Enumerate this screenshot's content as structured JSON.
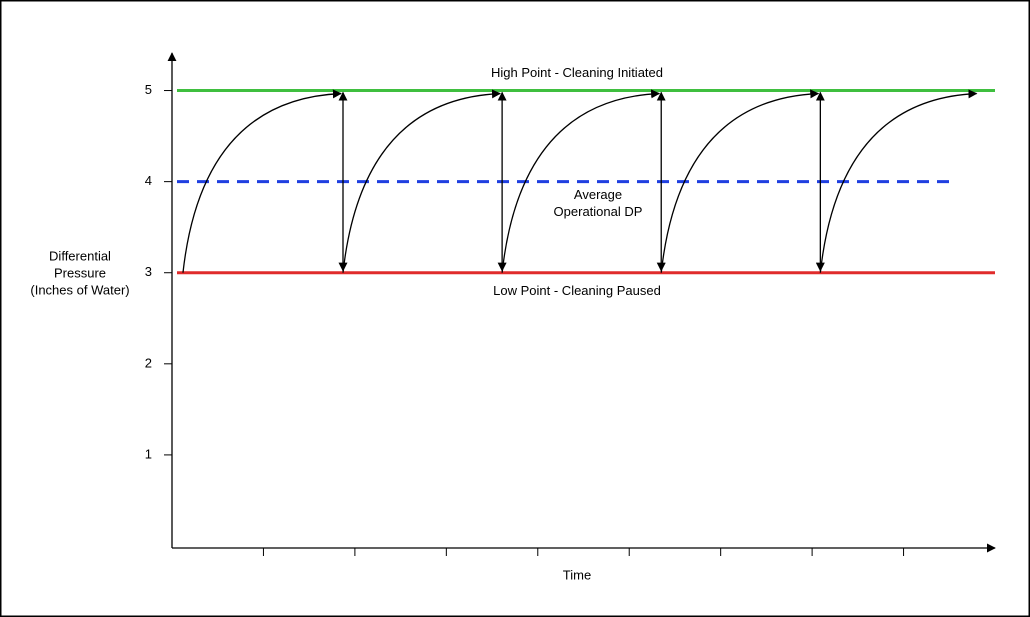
{
  "chart_data": {
    "type": "line",
    "x_label": "Time",
    "y_label_lines": [
      "Differential",
      "Pressure",
      "(Inches of Water)"
    ],
    "xlim": [
      0,
      9
    ],
    "xticks": [
      1,
      2,
      3,
      4,
      5,
      6,
      7,
      8
    ],
    "ylim": [
      0,
      5.5
    ],
    "yticks": [
      1,
      2,
      3,
      4,
      5
    ],
    "x": [
      0.12,
      1.87,
      1.87,
      3.61,
      3.61,
      5.35,
      5.35,
      7.09,
      7.09,
      8.82
    ],
    "values": [
      3,
      5,
      3,
      5,
      3,
      5,
      3,
      5,
      3,
      5
    ],
    "reference_lines": [
      {
        "value": 5,
        "label_lines": [
          "High Point - Cleaning Initiated"
        ],
        "color": "#3fbf3f",
        "dashed": false,
        "end": 9
      },
      {
        "value": 4,
        "label_lines": [
          "Average",
          "Operational DP"
        ],
        "color": "#1f3fe0",
        "dashed": true,
        "end": 8.5
      },
      {
        "value": 3,
        "label_lines": [
          "Low Point - Cleaning Paused"
        ],
        "color": "#e02b2b",
        "dashed": false,
        "end": 9
      }
    ]
  }
}
